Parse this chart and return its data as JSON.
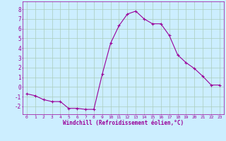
{
  "x": [
    0,
    1,
    2,
    3,
    4,
    5,
    6,
    7,
    8,
    9,
    10,
    11,
    12,
    13,
    14,
    15,
    16,
    17,
    18,
    19,
    20,
    21,
    22,
    23
  ],
  "y": [
    -0.7,
    -0.9,
    -1.3,
    -1.5,
    -1.5,
    -2.2,
    -2.2,
    -2.3,
    -2.3,
    1.3,
    4.5,
    6.3,
    7.5,
    7.8,
    7.0,
    6.5,
    6.5,
    5.3,
    3.3,
    2.5,
    1.9,
    1.1,
    0.2,
    0.2
  ],
  "line_color": "#990099",
  "marker": "+",
  "marker_size": 3,
  "bg_color": "#cceeff",
  "grid_color": "#aaccbb",
  "xlabel": "Windchill (Refroidissement éolien,°C)",
  "ylim": [
    -2.8,
    8.8
  ],
  "xlim": [
    -0.5,
    23.5
  ],
  "yticks": [
    -2,
    -1,
    0,
    1,
    2,
    3,
    4,
    5,
    6,
    7,
    8
  ],
  "xticks": [
    0,
    1,
    2,
    3,
    4,
    5,
    6,
    7,
    8,
    9,
    10,
    11,
    12,
    13,
    14,
    15,
    16,
    17,
    18,
    19,
    20,
    21,
    22,
    23
  ],
  "tick_color": "#990099",
  "label_color": "#990099"
}
